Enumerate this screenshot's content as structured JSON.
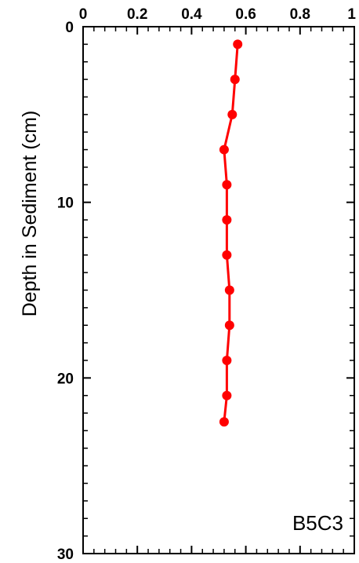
{
  "chart_data": {
    "type": "line",
    "orientation": "depth-profile",
    "title": "",
    "xlabel": "",
    "ylabel": "Depth in Sediment (cm)",
    "annotation": "B5C3",
    "xlim": [
      0,
      1
    ],
    "ylim": [
      0,
      30
    ],
    "y_inverted": true,
    "x_axis_position": "top",
    "x_ticks": [
      "0",
      "0.2",
      "0.4",
      "0.6",
      "0.8",
      "1"
    ],
    "y_ticks": [
      "0",
      "10",
      "20",
      "30"
    ],
    "grid": false,
    "legend": "none",
    "series_color": "#ff0000",
    "series": [
      {
        "name": "",
        "x": [
          0.57,
          0.56,
          0.55,
          0.52,
          0.53,
          0.53,
          0.53,
          0.54,
          0.54,
          0.53,
          0.53,
          0.52
        ],
        "y": [
          1,
          3,
          5,
          7,
          9,
          11,
          13,
          15,
          17,
          19,
          21,
          22.5
        ]
      }
    ]
  }
}
